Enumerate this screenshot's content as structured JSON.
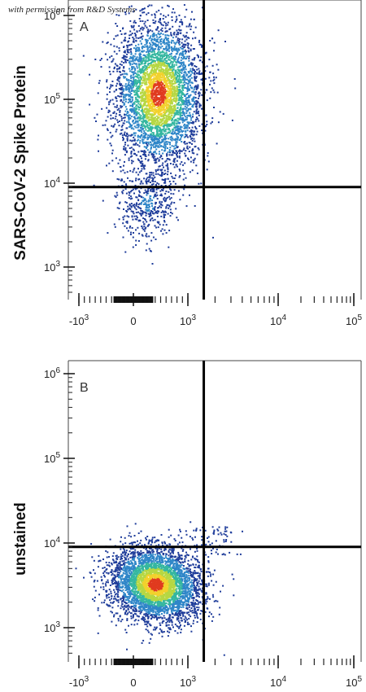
{
  "watermark": "with permission from R&D Systems",
  "chart_data": [
    {
      "type": "scatter",
      "panel_label": "A",
      "xlabel": "",
      "ylabel": "SARS-CoV-2 Spike Protein",
      "x_scale": "biexponential",
      "y_scale": "log",
      "x_ticks": [
        "-10^3",
        "0",
        "10^3",
        "10^4",
        "10^5"
      ],
      "y_ticks": [
        "10^3",
        "10^4",
        "10^5",
        "10^6"
      ],
      "ylim": [
        500,
        1000000
      ],
      "gate": {
        "x": 1500,
        "y": 9000
      },
      "populations": [
        {
          "name": "",
          "x_center": 450,
          "y_center": 120000,
          "n_points": 4200
        },
        {
          "name": "",
          "x_center": 250,
          "y_center": 6000,
          "n_points": 450
        }
      ],
      "colormap": [
        "#1e3c9a",
        "#2f86c8",
        "#35b7a0",
        "#b6d743",
        "#f2d12c",
        "#e03b1f"
      ]
    },
    {
      "type": "scatter",
      "panel_label": "B",
      "xlabel": "",
      "ylabel": "unstained",
      "x_scale": "biexponential",
      "y_scale": "log",
      "x_ticks": [
        "-10^3",
        "0",
        "10^3",
        "10^4",
        "10^5"
      ],
      "y_ticks": [
        "10^3",
        "10^4",
        "10^5",
        "10^6"
      ],
      "ylim": [
        500,
        1000000
      ],
      "gate": {
        "x": 1500,
        "y": 9000
      },
      "populations": [
        {
          "name": "",
          "x_center": 400,
          "y_center": 3300,
          "n_points": 4200
        }
      ],
      "colormap": [
        "#1e3c9a",
        "#2f86c8",
        "#35b7a0",
        "#b6d743",
        "#f2d12c",
        "#e03b1f"
      ]
    }
  ]
}
